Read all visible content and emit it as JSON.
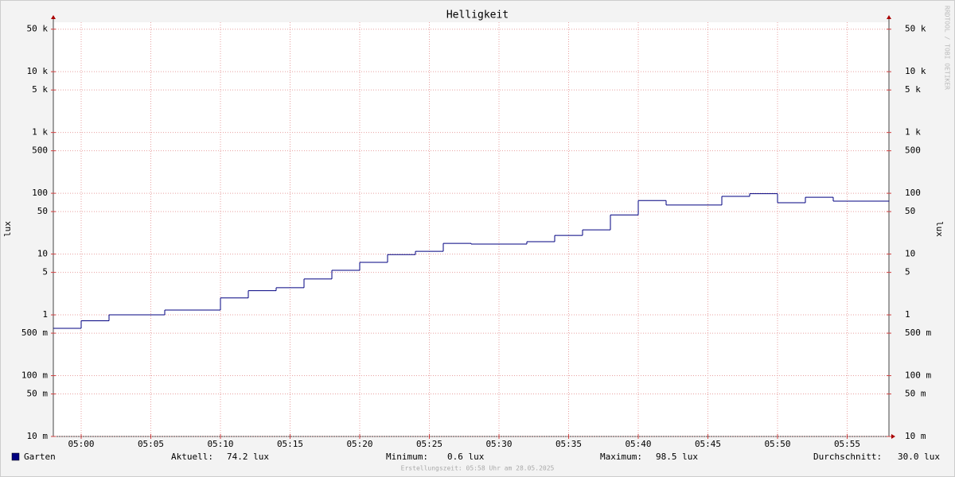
{
  "chart_data": {
    "type": "line",
    "title": "Helligkeit",
    "y_label": "lux",
    "watermark": "RRDTOOL / TOBI OETIKER",
    "log_scale": true,
    "grid": true,
    "xlim": [
      "04:58",
      "05:58"
    ],
    "xticks": [
      "05:00",
      "05:05",
      "05:10",
      "05:15",
      "05:20",
      "05:25",
      "05:30",
      "05:35",
      "05:40",
      "05:45",
      "05:50",
      "05:55"
    ],
    "ylim": [
      0.01,
      65000
    ],
    "yticks": [
      {
        "value": 0.01,
        "label": "10 m"
      },
      {
        "value": 0.05,
        "label": "50 m"
      },
      {
        "value": 0.1,
        "label": "100 m"
      },
      {
        "value": 0.5,
        "label": "500 m"
      },
      1,
      5,
      10,
      50,
      100,
      500,
      {
        "value": 1000,
        "label": "1 k"
      },
      {
        "value": 5000,
        "label": "5 k"
      },
      {
        "value": 10000,
        "label": "10 k"
      },
      {
        "value": 50000,
        "label": "50 k"
      }
    ],
    "series": [
      {
        "name": "Garten",
        "color": "#000080",
        "x": [
          "04:58",
          "05:00",
          "05:02",
          "05:06",
          "05:10",
          "05:12",
          "05:14",
          "05:16",
          "05:18",
          "05:20",
          "05:22",
          "05:24",
          "05:26",
          "05:28",
          "05:32",
          "05:34",
          "05:36",
          "05:38",
          "05:40",
          "05:42",
          "05:46",
          "05:48",
          "05:50",
          "05:52",
          "05:54",
          "05:58"
        ],
        "values": [
          0.6,
          0.8,
          1.0,
          1.2,
          1.9,
          2.5,
          2.8,
          3.9,
          5.4,
          7.3,
          9.8,
          11.1,
          15.0,
          14.6,
          16,
          20.3,
          25,
          44,
          76,
          64,
          89,
          98.5,
          70,
          86,
          74.2,
          74.2
        ]
      }
    ],
    "legend_stats": [
      {
        "label": "Aktuell:",
        "value": "74.2 lux"
      },
      {
        "label": "Minimum:",
        "value": "0.6 lux"
      },
      {
        "label": "Maximum:",
        "value": "98.5 lux"
      },
      {
        "label": "Durchschnitt:",
        "value": "30.0 lux"
      }
    ],
    "footer": "Erstellungszeit: 05:58 Uhr am 28.05.2025"
  }
}
